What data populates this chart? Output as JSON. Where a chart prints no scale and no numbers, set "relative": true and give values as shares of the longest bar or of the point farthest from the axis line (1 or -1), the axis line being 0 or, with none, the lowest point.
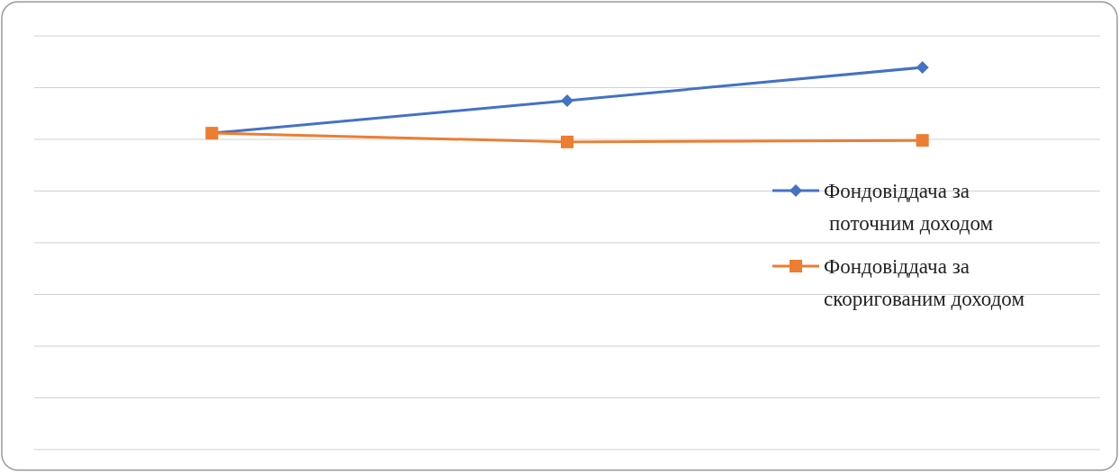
{
  "chart_data": {
    "type": "line",
    "relative": true,
    "categories": [
      null,
      null,
      null
    ],
    "series": [
      {
        "name": "Фондовіддача за поточним доходом",
        "color": "#4472c4",
        "marker": "diamond",
        "values": [
          0.828,
          0.913,
          1
        ]
      },
      {
        "name": "Фондовіддача за скоригованим доходом",
        "color": "#ed7d31",
        "marker": "square",
        "values": [
          0.828,
          0.805,
          0.809
        ]
      }
    ],
    "grid": true,
    "legend": "right"
  }
}
